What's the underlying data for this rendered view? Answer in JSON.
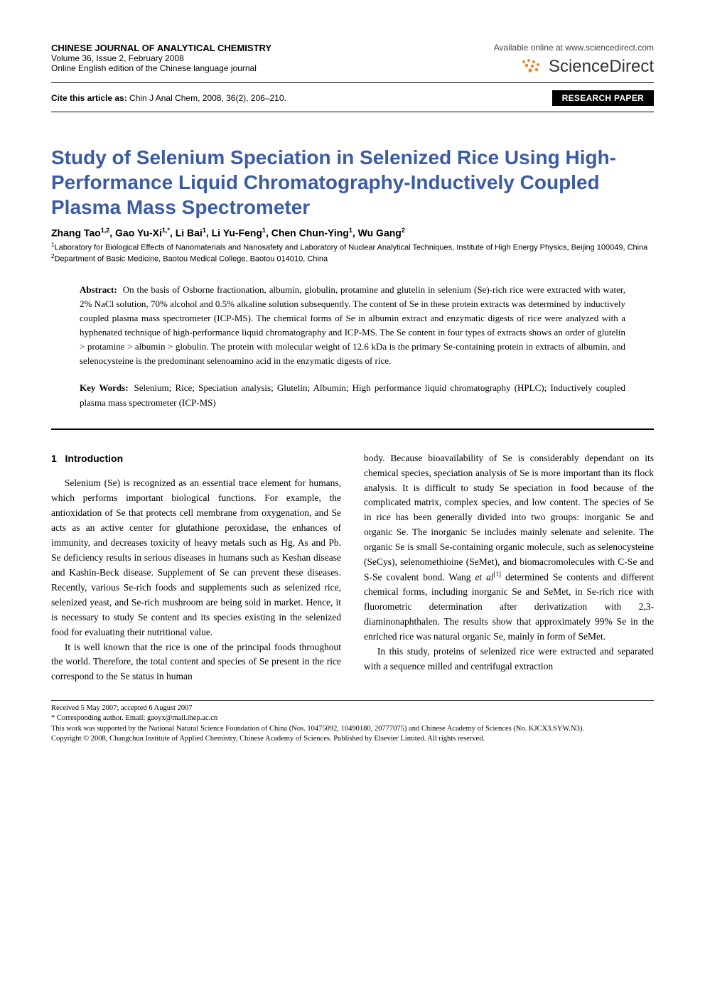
{
  "colors": {
    "title_color": "#3b5ba5",
    "badge_bg": "#000000",
    "badge_fg": "#ffffff",
    "rule_color": "#000000",
    "text_color": "#000000",
    "sd_dot_color": "#f58220",
    "sd_text_color": "#333333"
  },
  "header": {
    "journal_name": "CHINESE JOURNAL OF ANALYTICAL CHEMISTRY",
    "volume_issue": "Volume 36, Issue 2, February 2008",
    "edition_line": "Online English edition of the Chinese language journal",
    "available_online": "Available online at www.sciencedirect.com",
    "sd_logo_text": "ScienceDirect"
  },
  "cite": {
    "label": "Cite this article as:",
    "text": " Chin J Anal Chem, 2008, 36(2), 206–210.",
    "badge": "RESEARCH PAPER"
  },
  "title": "Study of Selenium Speciation in Selenized Rice Using High-Performance Liquid Chromatography-Inductively Coupled Plasma Mass Spectrometer",
  "authors_html": "Zhang Tao<sup>1,2</sup>, Gao Yu-Xi<sup>1,*</sup>, Li Bai<sup>1</sup>, Li Yu-Feng<sup>1</sup>, Chen Chun-Ying<sup>1</sup>, Wu Gang<sup>2</sup>",
  "affil1_sup": "1",
  "affil1": "Laboratory for Biological Effects of Nanomaterials and Nanosafety and Laboratory of Nuclear Analytical Techniques, Institute of High Energy Physics, Beijing 100049, China",
  "affil2_sup": "2",
  "affil2": "Department of Basic Medicine, Baotou Medical College, Baotou 014010, China",
  "abstract": {
    "label": "Abstract:",
    "text": "On the basis of Osborne fractionation, albumin, globulin, protamine and glutelin in selenium (Se)-rich rice were extracted with water, 2% NaCl solution, 70% alcohol and 0.5% alkaline solution subsequently. The content of Se in these protein extracts was determined by inductively coupled plasma mass spectrometer (ICP-MS). The chemical forms of Se in albumin extract and enzymatic digests of rice were analyzed with a hyphenated technique of high-performance liquid chromatography and ICP-MS. The Se content in four types of extracts shows an order of glutelin > protamine > albumin > globulin. The protein with molecular weight of 12.6 kDa is the primary Se-containing protein in extracts of albumin, and selenocysteine is the predominant selenoamino acid in the enzymatic digests of rice."
  },
  "keywords": {
    "label": "Key Words:",
    "text": "Selenium; Rice; Speciation analysis; Glutelin; Albumin; High performance liquid chromatography (HPLC); Inductively coupled plasma mass spectrometer (ICP-MS)"
  },
  "section1": {
    "number": "1",
    "title": "Introduction"
  },
  "body": {
    "col1_p1": "Selenium (Se) is recognized as an essential trace element for humans, which performs important biological functions. For example, the antioxidation of Se that protects cell membrane from oxygenation, and Se acts as an active center for glutathione peroxidase, the enhances of immunity, and decreases toxicity of heavy metals such as Hg, As and Pb. Se deficiency results in serious diseases in humans such as Keshan disease and Kashin-Beck disease. Supplement of Se can prevent these diseases. Recently, various Se-rich foods and supplements such as selenized rice, selenized yeast, and Se-rich mushroom are being sold in market. Hence, it is necessary to study Se content and its species existing in the selenized food for evaluating their nutritional value.",
    "col1_p2": "It is well known that the rice is one of the principal foods throughout the world. Therefore, the total content and species of Se present in the rice correspond to the Se status in human",
    "col2_p1_a": "body. Because bioavailability of Se is considerably dependant on its chemical species, speciation analysis of Se is more important than its flock analysis. It is difficult to study Se speciation in food because of the complicated matrix, complex species, and low content. The species of Se in rice has been generally divided into two groups: inorganic Se and organic Se. The inorganic Se includes mainly selenate and selenite. The organic Se is small Se-containing organic molecule, such as selenocysteine (SeCys), selenomethioine (SeMet), and biomacromolecules with C-Se and S-Se covalent bond. Wang ",
    "col2_p1_ref": "et al",
    "col2_p1_refnum": "[1]",
    "col2_p1_b": " determined Se contents and different chemical forms, including inorganic Se and SeMet, in Se-rich rice with fluorometric determination after derivatization with 2,3-diaminonaphthalen. The results show that approximately 99% Se in the enriched rice was natural organic Se, mainly in form of SeMet.",
    "col2_p2": "In this study, proteins of selenized rice were extracted and separated with a sequence milled and centrifugal extraction"
  },
  "footnotes": {
    "received": "Received 5 May 2007; accepted 6 August 2007",
    "corr": "* Corresponding author. Email: gaoyx@mail.ihep.ac.cn",
    "funding": "This work was supported by the National Natural Science Foundation of China (Nos. 10475092, 10490180, 20777075) and Chinese Academy of Sciences (No. KJCX3.SYW.N3).",
    "copyright": "Copyright © 2008, Changchun Institute of Applied Chemistry, Chinese Academy of Sciences. Published by Elsevier Limited. All rights reserved."
  }
}
